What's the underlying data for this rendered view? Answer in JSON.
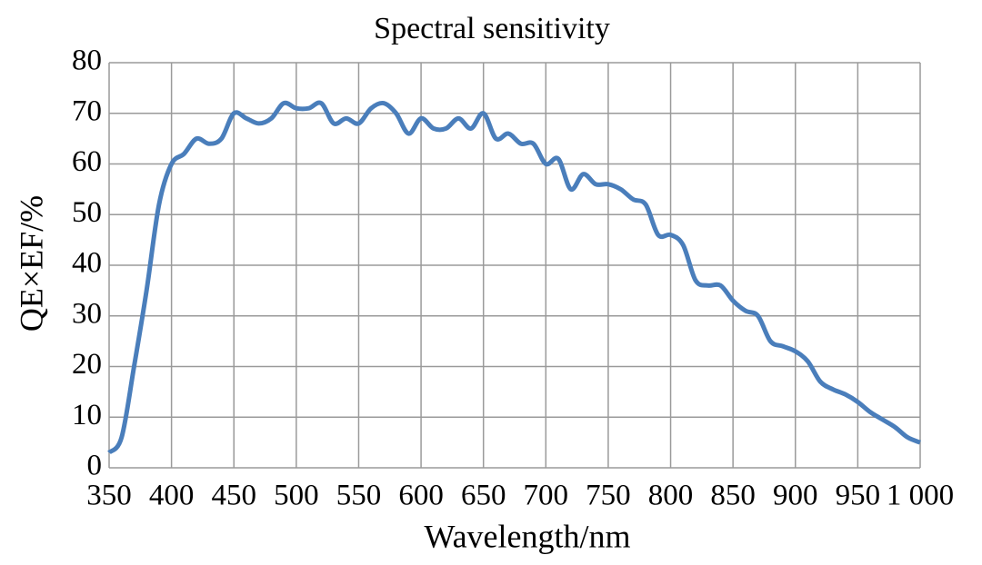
{
  "chart_data": {
    "type": "line",
    "title": "Spectral sensitivity",
    "x_label": "Wavelength/nm",
    "y_label": "QE×EF/%",
    "x": [
      350,
      360,
      370,
      380,
      390,
      400,
      410,
      420,
      430,
      440,
      450,
      460,
      470,
      480,
      490,
      500,
      510,
      520,
      530,
      540,
      550,
      560,
      570,
      580,
      590,
      600,
      610,
      620,
      630,
      640,
      650,
      660,
      670,
      680,
      690,
      700,
      710,
      720,
      730,
      740,
      750,
      760,
      770,
      780,
      790,
      800,
      810,
      820,
      830,
      840,
      850,
      860,
      870,
      880,
      890,
      900,
      910,
      920,
      930,
      940,
      950,
      960,
      970,
      980,
      990,
      1000
    ],
    "series": [
      {
        "color": "#4a7ebb",
        "values": [
          3,
          6,
          20,
          35,
          52,
          60,
          62,
          65,
          64,
          65,
          70,
          69,
          68,
          69,
          72,
          71,
          71,
          72,
          68,
          69,
          68,
          71,
          72,
          70,
          66,
          69,
          67,
          67,
          69,
          67,
          70,
          65,
          66,
          64,
          64,
          60,
          61,
          55,
          58,
          56,
          56,
          55,
          53,
          52,
          46,
          46,
          44,
          37,
          36,
          36,
          33,
          31,
          30,
          25,
          24,
          23,
          21,
          17,
          15.5,
          14.5,
          13,
          11,
          9.5,
          8,
          6,
          5
        ]
      }
    ],
    "xlim": [
      350,
      1000
    ],
    "ylim": [
      0,
      80
    ],
    "xticks": [
      350,
      400,
      450,
      500,
      550,
      600,
      650,
      700,
      750,
      800,
      850,
      900,
      950,
      {
        "value": 1000,
        "label": "1 000"
      }
    ],
    "yticks": [
      0,
      10,
      20,
      30,
      40,
      50,
      60,
      70,
      80
    ],
    "grid": true
  }
}
